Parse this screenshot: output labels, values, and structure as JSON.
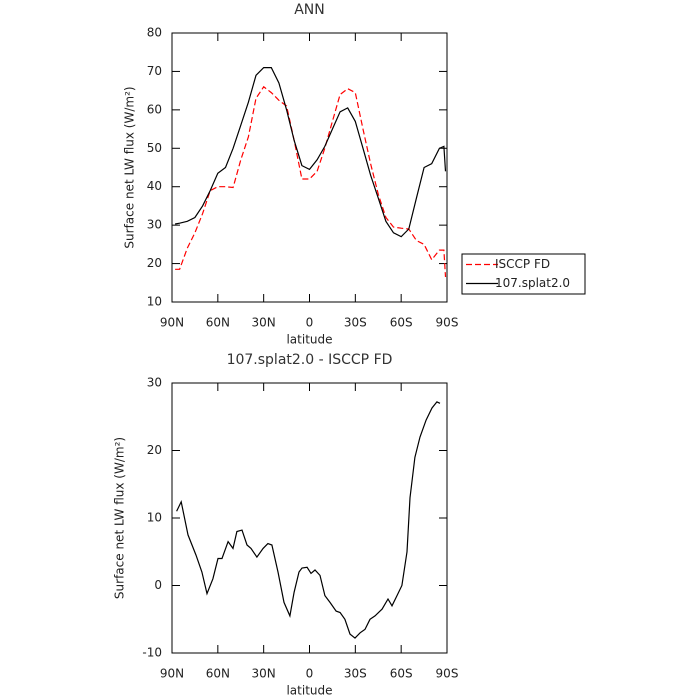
{
  "chart_data": [
    {
      "type": "line",
      "title": "ANN",
      "xlabel": "latitude",
      "ylabel": "Surface net LW flux (W/m²)",
      "x": [
        88,
        85,
        80,
        75,
        70,
        65,
        60,
        55,
        50,
        45,
        40,
        35,
        30,
        25,
        20,
        15,
        10,
        5,
        0,
        -5,
        -10,
        -15,
        -20,
        -25,
        -30,
        -35,
        -40,
        -45,
        -50,
        -55,
        -60,
        -65,
        -70,
        -75,
        -80,
        -85,
        -88,
        -89
      ],
      "series": [
        {
          "name": "ISCCP FD",
          "color": "#ff0000",
          "dashed": true,
          "values": [
            18.5,
            18.5,
            24,
            28,
            33,
            39,
            40,
            40,
            39.8,
            47,
            53,
            63,
            66,
            64.5,
            62.5,
            61,
            52,
            42,
            42,
            44,
            50,
            57,
            64,
            65.5,
            64.5,
            55,
            46,
            38,
            32,
            29.5,
            29.2,
            29,
            26,
            25,
            21,
            23.5,
            23.5,
            16.5
          ]
        },
        {
          "name": "107.splat2.0",
          "color": "#000000",
          "dashed": false,
          "values": [
            30.3,
            30.5,
            31,
            32,
            35,
            39,
            43.5,
            45,
            50,
            56,
            62,
            69,
            71,
            71,
            67,
            60,
            52,
            45.5,
            44.5,
            47,
            50.5,
            55,
            59.5,
            60.5,
            57,
            50,
            43,
            37,
            31,
            28,
            27,
            29,
            37,
            45,
            46,
            50,
            50.5,
            44
          ]
        }
      ],
      "xlim": [
        90,
        -90
      ],
      "xticks": [
        {
          "value": 90,
          "label": "90N"
        },
        {
          "value": 60,
          "label": "60N"
        },
        {
          "value": 30,
          "label": "30N"
        },
        0,
        {
          "value": -30,
          "label": "30S"
        },
        {
          "value": -60,
          "label": "60S"
        },
        {
          "value": -90,
          "label": "90S"
        }
      ],
      "ylim": [
        10,
        80
      ],
      "yticks": [
        10,
        20,
        30,
        40,
        50,
        60,
        70,
        80
      ],
      "legend": "right"
    },
    {
      "type": "line",
      "title": "107.splat2.0 - ISCCP FD",
      "xlabel": "latitude",
      "ylabel": "Surface net LW flux (W/m²)",
      "x": [
        87,
        84,
        79.5,
        74.3,
        70.4,
        67.1,
        63.2,
        59.9,
        57.3,
        53.3,
        50.1,
        47.5,
        44.2,
        40.9,
        38.3,
        34.4,
        30.4,
        27.2,
        24.6,
        20.6,
        16.7,
        12.8,
        10.1,
        6.9,
        4.9,
        1.6,
        -1,
        -3.6,
        -6.9,
        -10.1,
        -13.4,
        -17.4,
        -20,
        -23.2,
        -26.5,
        -29.8,
        -33.1,
        -36.3,
        -39.6,
        -42.9,
        -47.5,
        -51.4,
        -54,
        -57.3,
        -60.5,
        -63.8,
        -65.8,
        -69,
        -72.3,
        -76.3,
        -80.2,
        -83.4,
        -85.4
      ],
      "values": [
        11,
        12.4,
        7.5,
        4.5,
        2,
        -1.2,
        1,
        4,
        4,
        6.5,
        5.5,
        8,
        8.2,
        6,
        5.5,
        4.2,
        5.5,
        6.2,
        6,
        2,
        -2.5,
        -4.5,
        -1,
        2,
        2.6,
        2.7,
        1.8,
        2.3,
        1.5,
        -1.5,
        -2.5,
        -3.8,
        -4,
        -5,
        -7.2,
        -7.8,
        -7,
        -6.5,
        -5,
        -4.5,
        -3.5,
        -2,
        -3,
        -1.5,
        0,
        5,
        13,
        19,
        22,
        24.5,
        26.3,
        27.2,
        27
      ],
      "color": "#000000",
      "xlim": [
        90,
        -90
      ],
      "xticks": [
        {
          "value": 90,
          "label": "90N"
        },
        {
          "value": 60,
          "label": "60N"
        },
        {
          "value": 30,
          "label": "30N"
        },
        0,
        {
          "value": -30,
          "label": "30S"
        },
        {
          "value": -60,
          "label": "60S"
        },
        {
          "value": -90,
          "label": "90S"
        }
      ],
      "ylim": [
        -10,
        30
      ],
      "yticks": [
        -10,
        0,
        10,
        20,
        30
      ]
    }
  ]
}
